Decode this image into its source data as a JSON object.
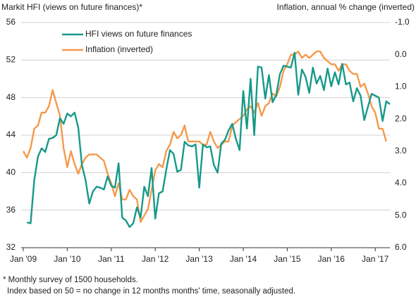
{
  "chart_data": {
    "type": "line",
    "title": "Markit HFI (views on future finances)*",
    "y2_title": "Inflation, annual % change (inverted)",
    "footnotes": [
      "* Monthly survey of 1500 households.",
      "Index based on 50 = no change in 12 months months' time, seasonally adjusted."
    ],
    "categories": [
      "Jan '09",
      null,
      null,
      null,
      null,
      null,
      null,
      null,
      null,
      null,
      null,
      null,
      "Jan '10",
      null,
      null,
      null,
      null,
      null,
      null,
      null,
      null,
      null,
      null,
      null,
      "Jan '11",
      null,
      null,
      null,
      null,
      null,
      null,
      null,
      null,
      null,
      null,
      null,
      "Jan '12",
      null,
      null,
      null,
      null,
      null,
      null,
      null,
      null,
      null,
      null,
      null,
      "Jan '13",
      null,
      null,
      null,
      null,
      null,
      null,
      null,
      null,
      null,
      null,
      null,
      "Jan '14",
      null,
      null,
      null,
      null,
      null,
      null,
      null,
      null,
      null,
      null,
      null,
      "Jan '15",
      null,
      null,
      null,
      null,
      null,
      null,
      null,
      null,
      null,
      null,
      null,
      "Jan '16",
      null,
      null,
      null,
      null,
      null,
      null,
      null,
      null,
      null,
      null,
      null,
      "Jan '17",
      null,
      null,
      null,
      null
    ],
    "series": [
      {
        "name": "HFI views on future finances",
        "color": "#17998a",
        "values": [
          null,
          34.7,
          34.6,
          39.2,
          41.7,
          42.6,
          42.2,
          43.6,
          43.7,
          44.0,
          45.8,
          45.2,
          46.3,
          46.0,
          46.4,
          44.8,
          40.8,
          39.2,
          36.7,
          38.0,
          38.5,
          38.4,
          38.2,
          39.6,
          38.6,
          38.4,
          41.0,
          35.2,
          34.9,
          34.2,
          34.6,
          36.3,
          35.2,
          38.5,
          37.5,
          40.5,
          35.1,
          37.8,
          38.0,
          40.3,
          42.4,
          42.0,
          40.1,
          40.3,
          43.3,
          42.9,
          42.8,
          43.0,
          38.4,
          43.0,
          42.7,
          42.8,
          40.8,
          40.0,
          43.1,
          43.5,
          44.5,
          45.2,
          43.6,
          42.4,
          48.7,
          44.7,
          50.0,
          44.0,
          51.3,
          51.2,
          47.9,
          50.4,
          47.5,
          48.3,
          50.5,
          51.4,
          51.3,
          51.2,
          52.8,
          48.3,
          51.0,
          50.2,
          48.5,
          51.2,
          49.5,
          50.3,
          48.8,
          51.1,
          49.2,
          50.7,
          49.4,
          51.6,
          49.4,
          49.6,
          47.6,
          49.0,
          48.2,
          45.6,
          47.0,
          48.4,
          48.2,
          48.0,
          45.5,
          47.6,
          47.3
        ]
      },
      {
        "name": "Inflation (inverted)",
        "color": "#f5994a",
        "axis": "y2",
        "values": [
          3.0,
          3.2,
          2.9,
          2.3,
          2.2,
          1.8,
          1.8,
          1.6,
          1.1,
          1.5,
          1.9,
          2.9,
          3.5,
          3.0,
          3.4,
          3.7,
          3.4,
          3.2,
          3.1,
          3.1,
          3.1,
          3.2,
          3.3,
          3.7,
          4.0,
          4.4,
          4.0,
          4.5,
          4.5,
          4.2,
          4.4,
          4.5,
          5.2,
          5.0,
          4.8,
          4.2,
          3.6,
          3.4,
          3.5,
          3.0,
          2.8,
          2.4,
          2.6,
          2.5,
          2.2,
          2.7,
          2.7,
          2.7,
          2.7,
          2.8,
          2.8,
          2.4,
          2.7,
          2.9,
          2.8,
          2.7,
          2.7,
          2.2,
          2.1,
          2.0,
          1.9,
          1.7,
          1.6,
          1.8,
          1.5,
          1.9,
          1.6,
          1.5,
          1.2,
          1.3,
          1.0,
          0.5,
          0.3,
          0.0,
          0.0,
          -0.1,
          0.1,
          0.0,
          0.1,
          0.0,
          -0.1,
          -0.1,
          0.1,
          0.2,
          0.3,
          0.3,
          0.5,
          0.3,
          0.3,
          0.5,
          0.6,
          0.6,
          1.0,
          0.9,
          1.2,
          1.6,
          1.8,
          2.3,
          2.3,
          2.7,
          null
        ]
      }
    ],
    "ylim": [
      32,
      56
    ],
    "yticks": [
      32,
      36,
      40,
      44,
      48,
      52,
      56
    ],
    "y2lim": [
      -1,
      6
    ],
    "y2_inverted": true,
    "y2ticks": [
      {
        "value": -1,
        "label": "-1.0"
      },
      {
        "value": 0,
        "label": "0.0"
      },
      {
        "value": 1,
        "label": "1.0"
      },
      {
        "value": 2,
        "label": "2.0"
      },
      {
        "value": 3,
        "label": "3.0"
      },
      {
        "value": 4,
        "label": "4.0"
      },
      {
        "value": 5,
        "label": "5.0"
      },
      {
        "value": 6,
        "label": "6.0"
      }
    ],
    "grid": true
  }
}
